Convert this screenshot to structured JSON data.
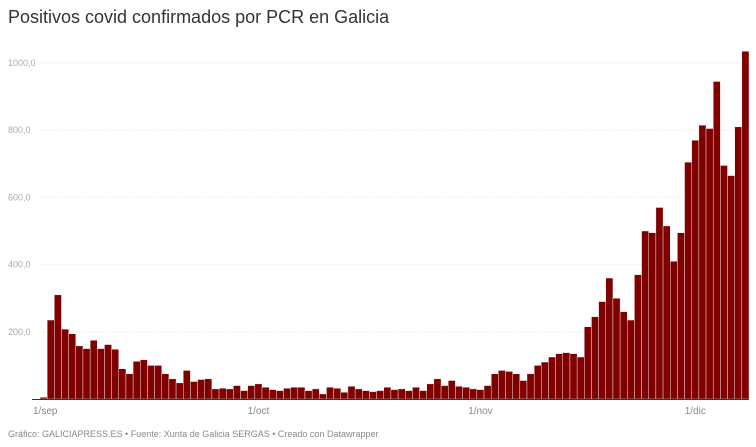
{
  "title": "Positivos covid confirmados por PCR en Galicia",
  "footer": "Gráfico: GALICIAPRESS.ES • Fuente: Xunta de Galicia SERGAS • Creado con Datawrapper",
  "chart_data": {
    "type": "bar",
    "title": "Positivos covid confirmados por PCR en Galicia",
    "x_start": "2020-09-01",
    "x_end": "2020-12-08",
    "x_ticks": [
      {
        "label": "1/sep",
        "index": 0
      },
      {
        "label": "1/oct",
        "index": 30
      },
      {
        "label": "1/nov",
        "index": 61
      },
      {
        "label": "1/dic",
        "index": 91
      }
    ],
    "y_ticks": [
      {
        "value": 200,
        "label": "200,0"
      },
      {
        "value": 400,
        "label": "400,0"
      },
      {
        "value": 600,
        "label": "600,0"
      },
      {
        "value": 800,
        "label": "800,0"
      },
      {
        "value": 1000,
        "label": "1000,0"
      }
    ],
    "ylim": [
      0,
      1040
    ],
    "grid": true,
    "color": "#800000",
    "values": [
      5,
      235,
      310,
      208,
      194,
      158,
      150,
      175,
      150,
      162,
      148,
      90,
      75,
      112,
      117,
      100,
      100,
      75,
      60,
      48,
      85,
      52,
      58,
      60,
      30,
      32,
      30,
      40,
      25,
      40,
      45,
      35,
      28,
      25,
      32,
      35,
      35,
      25,
      30,
      15,
      35,
      32,
      20,
      38,
      30,
      25,
      22,
      25,
      35,
      28,
      30,
      25,
      35,
      25,
      45,
      60,
      40,
      55,
      38,
      35,
      30,
      28,
      40,
      75,
      85,
      82,
      75,
      55,
      75,
      100,
      110,
      125,
      135,
      138,
      135,
      125,
      215,
      245,
      290,
      360,
      300,
      260,
      235,
      370,
      500,
      495,
      570,
      515,
      410,
      495,
      705,
      770,
      815,
      805,
      945,
      695,
      665,
      810,
      1035
    ]
  }
}
